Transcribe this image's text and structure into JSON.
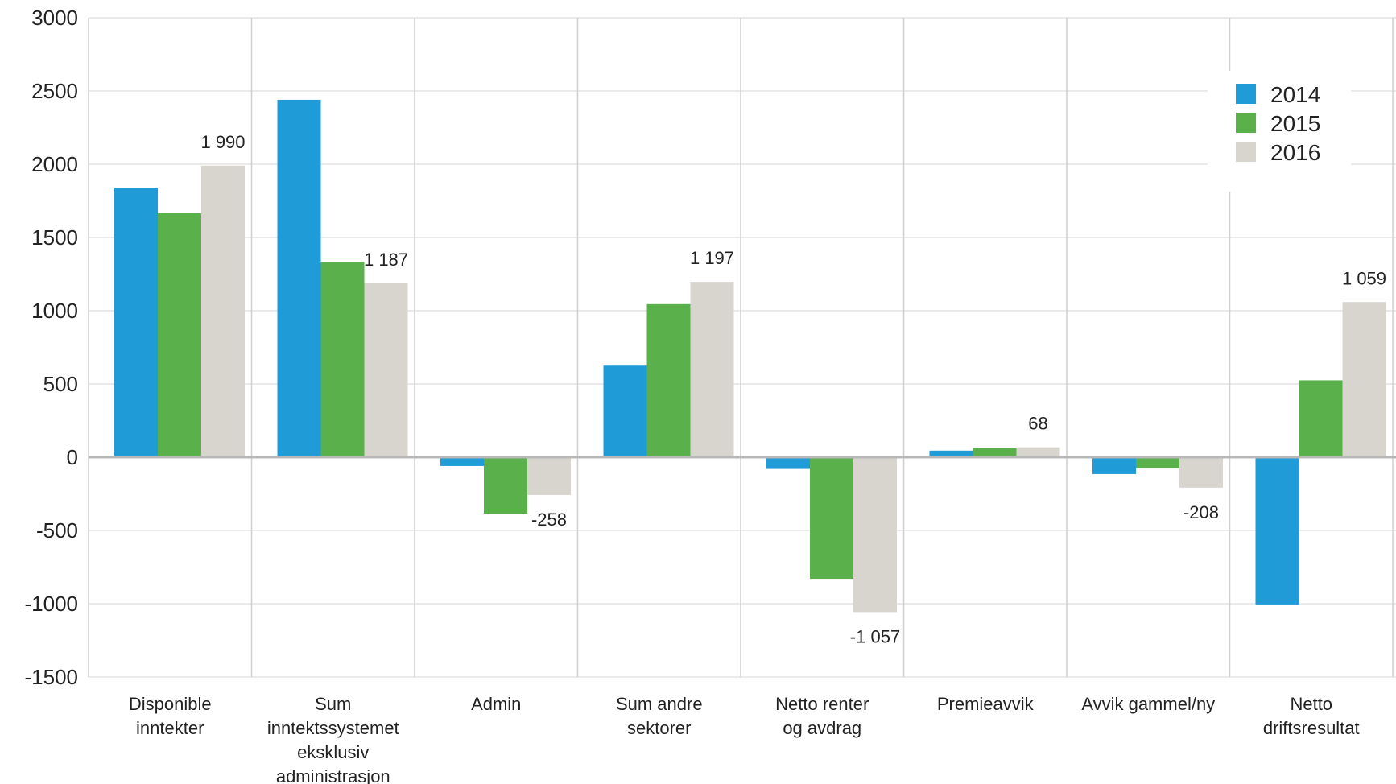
{
  "chart_data": {
    "type": "bar",
    "categories": [
      [
        "Disponible",
        "inntekter"
      ],
      [
        "Sum",
        "inntektssystemet",
        "eksklusiv",
        "administrasjon"
      ],
      [
        "Admin"
      ],
      [
        "Sum andre",
        "sektorer"
      ],
      [
        "Netto renter",
        "og avdrag"
      ],
      [
        "Premieavvik"
      ],
      [
        "Avvik gammel/ny"
      ],
      [
        "Netto",
        "driftsresultat"
      ]
    ],
    "series": [
      {
        "name": "2014",
        "color": "#1f9bd8",
        "values": [
          1840,
          2440,
          -60,
          625,
          -80,
          45,
          -115,
          -1005
        ]
      },
      {
        "name": "2015",
        "color": "#5ab14c",
        "values": [
          1665,
          1335,
          -385,
          1045,
          -830,
          65,
          -75,
          525
        ]
      },
      {
        "name": "2016",
        "color": "#d8d4ce",
        "values": [
          1990,
          1187,
          -258,
          1197,
          -1057,
          68,
          -208,
          1059
        ]
      }
    ],
    "data_labels": [
      "1 990",
      "1 187",
      "-258",
      "1 197",
      "-1 057",
      "68",
      "-208",
      "1 059"
    ],
    "ylim": [
      -1500,
      3000
    ],
    "yticks": [
      3000,
      2500,
      2000,
      1500,
      1000,
      500,
      0,
      -500,
      -1000,
      -1500
    ],
    "ytick_labels": [
      "3000",
      "2500",
      "2000",
      "1500",
      "1000",
      "500",
      "0",
      "-500",
      "-1000",
      "-1500"
    ],
    "legend_position": "top-right",
    "grid": true,
    "title": "",
    "xlabel": "",
    "ylabel": ""
  }
}
